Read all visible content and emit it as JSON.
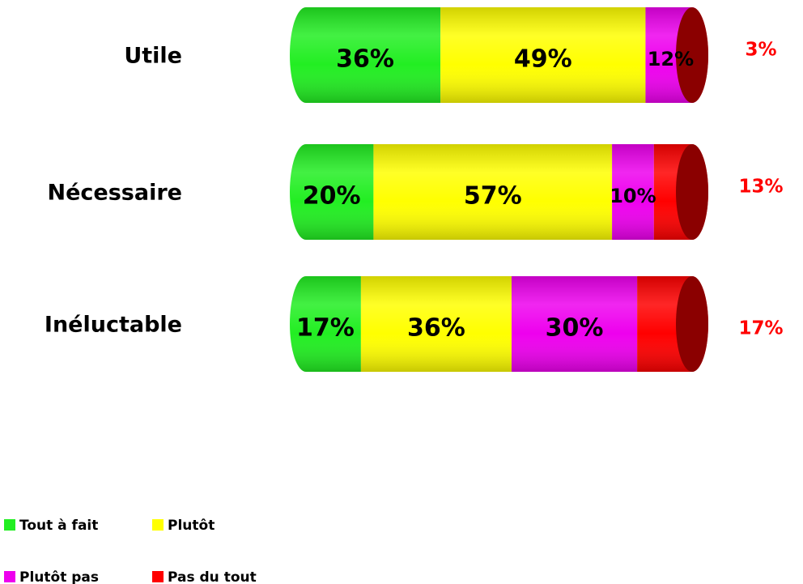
{
  "chart_data": {
    "type": "bar",
    "orientation": "horizontal",
    "stacked": true,
    "categories": [
      "Utile",
      "Nécessaire",
      "Inéluctable"
    ],
    "series": [
      {
        "name": "Tout à fait",
        "color": "#22ee22",
        "values": [
          36,
          20,
          17
        ],
        "value_labels": [
          "36%",
          "20%",
          "17%"
        ]
      },
      {
        "name": "Plutôt",
        "color": "#ffff00",
        "values": [
          49,
          57,
          36
        ],
        "value_labels": [
          "49%",
          "57%",
          "36%"
        ]
      },
      {
        "name": "Plutôt pas",
        "color": "#ee00ee",
        "values": [
          12,
          10,
          30
        ],
        "value_labels": [
          "12%",
          "10%",
          "30%"
        ]
      },
      {
        "name": "Pas du tout",
        "color": "#ff0000",
        "values": [
          3,
          13,
          17
        ],
        "value_labels": [
          "3%",
          "13%",
          "17%"
        ]
      }
    ]
  }
}
